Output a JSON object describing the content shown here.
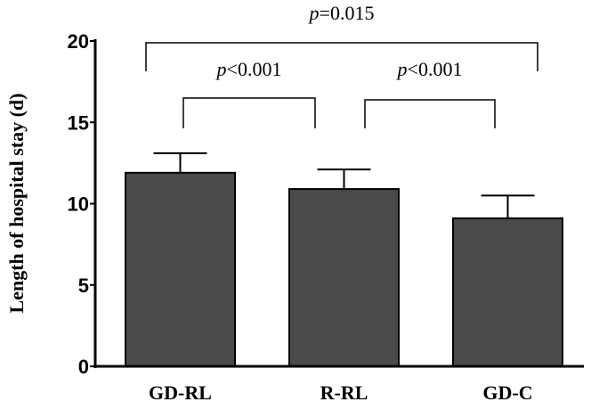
{
  "chart_data": {
    "type": "bar",
    "title": "",
    "xlabel": "",
    "ylabel": "Length of hospital stay (d)",
    "ylim": [
      0,
      20
    ],
    "yticks": [
      0,
      5,
      10,
      15,
      20
    ],
    "categories": [
      "GD-RL",
      "R-RL",
      "GD-C"
    ],
    "values": [
      11.9,
      10.9,
      9.1
    ],
    "error_upper": [
      13.1,
      12.1,
      10.5
    ],
    "bar_color": "#4a4a4a",
    "grid": false,
    "legend": "none",
    "annotations": [
      {
        "from": "GD-RL",
        "to": "GD-C",
        "p_symbol": "p",
        "text": "=0.015"
      },
      {
        "from": "GD-RL",
        "to": "R-RL",
        "p_symbol": "p",
        "text": "<0.001"
      },
      {
        "from": "R-RL",
        "to": "GD-C",
        "p_symbol": "p",
        "text": "<0.001"
      }
    ]
  }
}
